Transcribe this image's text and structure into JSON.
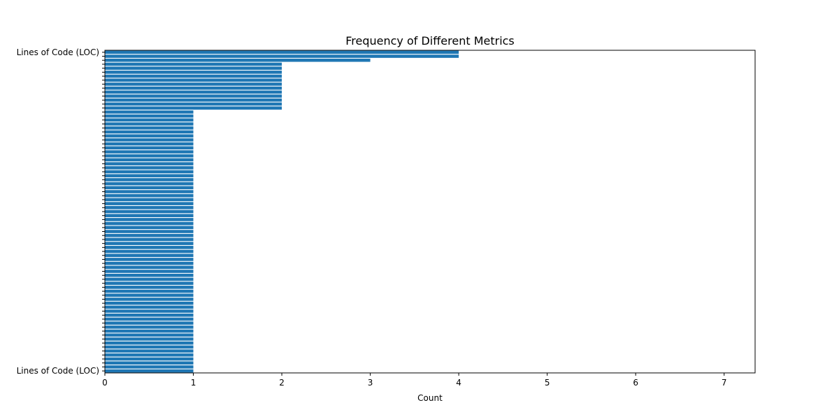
{
  "chart_data": {
    "type": "bar",
    "orientation": "horizontal",
    "title": "Frequency of Different Metrics",
    "xlabel": "Count",
    "ylabel": "",
    "xlim": [
      0,
      7.35
    ],
    "xticks": [
      0,
      1,
      2,
      3,
      4,
      5,
      6,
      7
    ],
    "grid": false,
    "bar_color": "#1f77b4",
    "categories": [
      "Lines of Code (LOC)",
      "",
      "",
      "",
      "",
      "",
      "",
      "",
      "",
      "",
      "",
      "",
      "",
      "",
      "",
      "",
      "",
      "",
      "",
      "",
      "",
      "",
      "",
      "",
      "",
      "",
      "",
      "",
      "",
      "",
      "",
      "",
      "",
      "",
      "",
      "",
      "",
      "",
      "",
      "",
      "",
      "",
      "",
      "",
      "",
      "",
      "",
      "",
      "",
      "",
      "",
      "",
      "",
      "",
      "",
      "",
      "",
      "",
      "",
      "",
      "",
      "",
      "",
      "",
      "",
      "",
      "",
      "",
      "",
      "",
      "",
      "",
      "",
      "",
      "",
      "",
      "",
      "",
      "",
      "",
      "Lines of Code (LOC)"
    ],
    "values": [
      4,
      4,
      3,
      2,
      2,
      2,
      2,
      2,
      2,
      2,
      2,
      2,
      2,
      2,
      2,
      1,
      1,
      1,
      1,
      1,
      1,
      1,
      1,
      1,
      1,
      1,
      1,
      1,
      1,
      1,
      1,
      1,
      1,
      1,
      1,
      1,
      1,
      1,
      1,
      1,
      1,
      1,
      1,
      1,
      1,
      1,
      1,
      1,
      1,
      1,
      1,
      1,
      1,
      1,
      1,
      1,
      1,
      1,
      1,
      1,
      1,
      1,
      1,
      1,
      1,
      1,
      1,
      1,
      1,
      1,
      1,
      1,
      1,
      1,
      1,
      1,
      1,
      1,
      1,
      1,
      1
    ]
  }
}
